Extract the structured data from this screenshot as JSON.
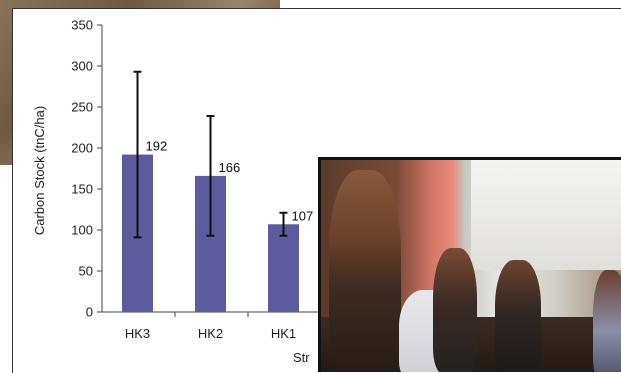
{
  "chart_data": {
    "type": "bar",
    "categories": [
      "HK3",
      "HK2",
      "HK1"
    ],
    "values": [
      192,
      166,
      107
    ],
    "error_high": [
      293,
      239,
      121
    ],
    "error_low": [
      91,
      93,
      93
    ],
    "data_labels": [
      "192",
      "166",
      "107"
    ],
    "ylabel": "Carbon Stock (tnC/ha)",
    "xlabel_visible_fragment": "Str",
    "yticks": [
      0,
      50,
      100,
      150,
      200,
      250,
      300,
      350
    ],
    "ylim": [
      0,
      350
    ],
    "grid": false,
    "bar_color": "#5b5b9e"
  }
}
